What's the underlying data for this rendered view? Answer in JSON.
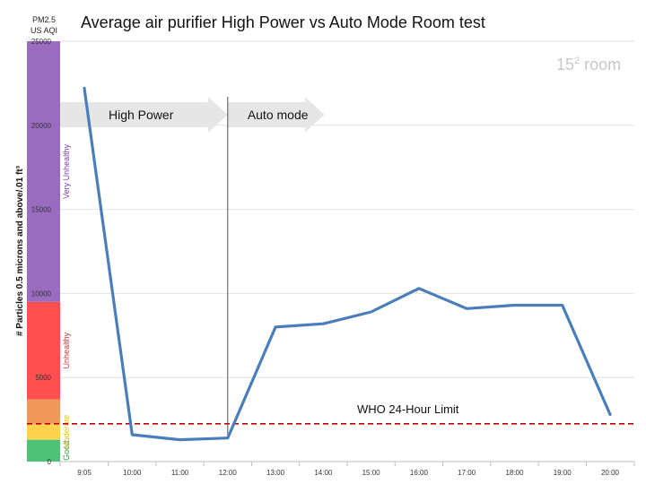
{
  "chart_data": {
    "type": "line",
    "title": "Average air purifier High Power vs Auto Mode Room test",
    "room_label": "15",
    "room_label_sup": "2",
    "room_label_suffix": " room",
    "ylabel": "# Particles 0.5 microns and above/.01 ft³",
    "aqi_header": [
      "PM2.5",
      "US AQI"
    ],
    "x": [
      "9:05",
      "10:00",
      "11:00",
      "12:00",
      "13:00",
      "14:00",
      "15:00",
      "16:00",
      "17:00",
      "18:00",
      "19:00",
      "20:00"
    ],
    "series": [
      {
        "color": "#4a7ebb",
        "values": [
          22200,
          1600,
          1300,
          1400,
          8000,
          8200,
          8900,
          10300,
          9100,
          9300,
          9300,
          2800
        ]
      }
    ],
    "ylim": [
      0,
      25000
    ],
    "yticks": [
      0,
      5000,
      10000,
      15000,
      20000,
      25000
    ],
    "grid": true,
    "who_limit": {
      "label": "WHO 24-Hour Limit",
      "value": 2250,
      "color": "#c00000"
    },
    "phases": [
      {
        "label": "High Power",
        "start": "9:05",
        "end": "12:00"
      },
      {
        "label": "Auto mode",
        "start": "12:00",
        "end": "15:00"
      }
    ],
    "aqi_bands": [
      {
        "label": "Good",
        "from": 0,
        "to": 1300,
        "color": "#4dc277",
        "text_color": "#2f9a49"
      },
      {
        "label": "Moderate",
        "from": 1300,
        "to": 2250,
        "color": "#ffd34d",
        "text_color": "#e0bc33"
      },
      {
        "label": "",
        "from": 2250,
        "to": 3700,
        "color": "#f0975a",
        "text_color": "#e07b3a"
      },
      {
        "label": "Unhealthy",
        "from": 3700,
        "to": 9500,
        "color": "#ff4f4f",
        "text_color": "#c0393b"
      },
      {
        "label": "Very Unhealthy",
        "from": 9500,
        "to": 25000,
        "color": "#9a6cc0",
        "text_color": "#7a3fa8"
      }
    ]
  }
}
